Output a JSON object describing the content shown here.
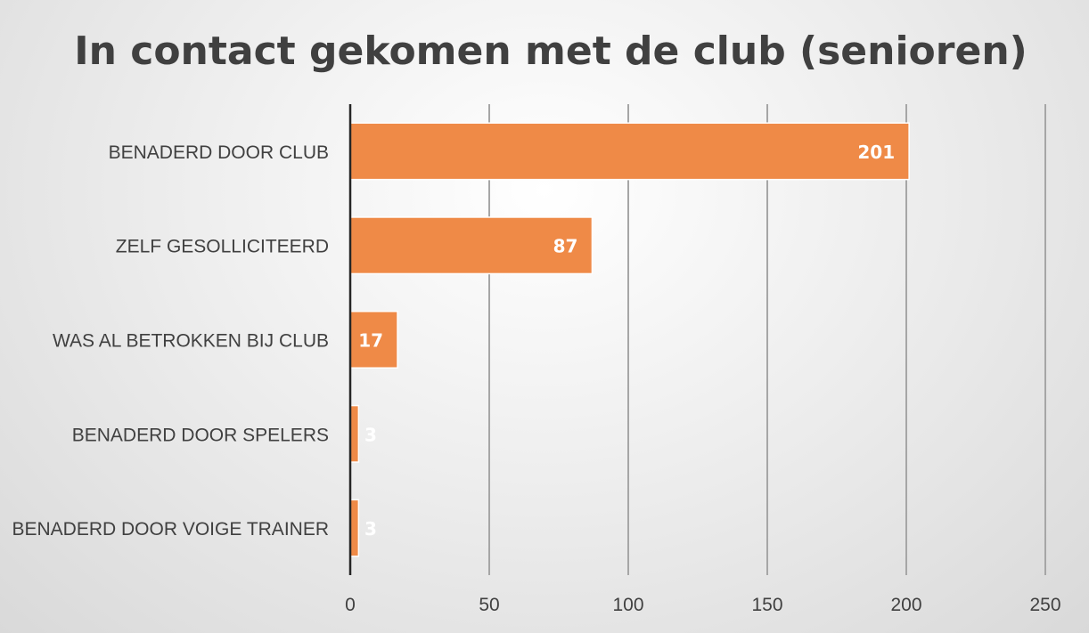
{
  "chart_data": {
    "type": "bar",
    "orientation": "horizontal",
    "title": "In contact gekomen met de club (senioren)",
    "xlabel": "",
    "ylabel": "",
    "categories": [
      "BENADERD DOOR CLUB",
      "ZELF GESOLLICITEERD",
      "WAS AL BETROKKEN BIJ CLUB",
      "BENADERD DOOR SPELERS",
      "BENADERD DOOR VOIGE TRAINER"
    ],
    "values": [
      201,
      87,
      17,
      3,
      3
    ],
    "xlim": [
      0,
      250
    ],
    "xticks": [
      0,
      50,
      100,
      150,
      200,
      250
    ],
    "grid": true,
    "legend": "none",
    "colors": {
      "bar": "#ef8a47",
      "text": "#404040",
      "grid": "#a6a6a6",
      "axis": "#262626",
      "data_label": "#ffffff"
    }
  }
}
